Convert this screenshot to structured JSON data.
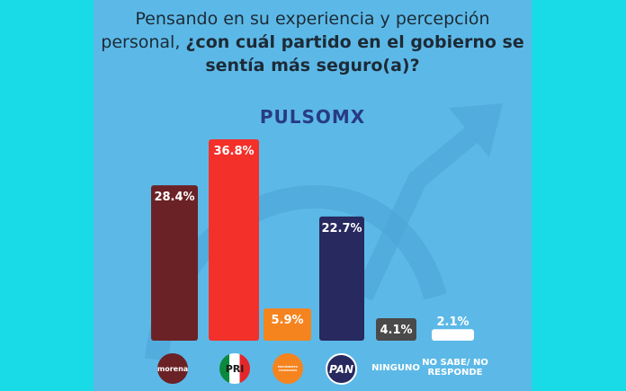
{
  "title": {
    "normal": "Pensando en su experiencia y percepción personal, ",
    "bold": "¿con cuál partido en el gobierno se sentía más seguro(a)?"
  },
  "brand": "PULSOMX",
  "chart_data": {
    "type": "bar",
    "title": "Pensando en su experiencia y percepción personal, ¿con cuál partido en el gobierno se sentía más seguro(a)?",
    "categories": [
      "morena",
      "PRI",
      "Movimiento Ciudadano",
      "PAN",
      "NINGUNO",
      "NO SABE/ NO RESPONDE"
    ],
    "values": [
      28.4,
      36.8,
      5.9,
      22.7,
      4.1,
      2.1
    ],
    "value_labels": [
      "28.4%",
      "36.8%",
      "5.9%",
      "22.7%",
      "4.1%",
      "2.1%"
    ],
    "colors": [
      "#6b2226",
      "#f3302a",
      "#f5841f",
      "#27295f",
      "#4a4a4a",
      "#ffffff"
    ],
    "label_colors": [
      "#ffffff",
      "#ffffff",
      "#ffffff",
      "#ffffff",
      "#ffffff",
      "#5cb9e7"
    ],
    "ylim": [
      0,
      37
    ],
    "grid": false,
    "xlabel": "",
    "ylabel": ""
  },
  "logos": {
    "morena": "morena",
    "pri": "PRI",
    "mc": "MOVIMIENTO CIUDADANO",
    "pan": "PAN"
  },
  "text_categories": {
    "ninguno": "NINGUNO",
    "nosabe": "NO SABE/ NO RESPONDE"
  }
}
